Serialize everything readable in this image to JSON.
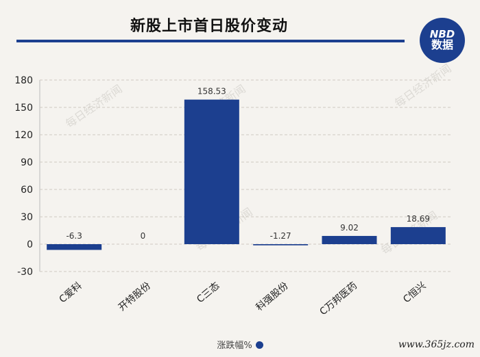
{
  "header": {
    "title": "新股上市首日股价变动",
    "badge_top": "NBD",
    "badge_bottom": "数据"
  },
  "chart_data": {
    "type": "bar",
    "categories": [
      "C爱科",
      "开特股份",
      "C三态",
      "科强股份",
      "C万邦医药",
      "C恒兴"
    ],
    "values": [
      -6.3,
      0,
      158.53,
      -1.27,
      9.02,
      18.69
    ],
    "value_labels": [
      "-6.3",
      "0",
      "158.53",
      "-1.27",
      "9.02",
      "18.69"
    ],
    "ylim": [
      -30,
      180
    ],
    "yticks": [
      -30,
      0,
      30,
      60,
      90,
      120,
      150,
      180
    ],
    "grid": true,
    "bar_color": "#1c3f8f",
    "legend": {
      "label": "涨跌幅%",
      "position": "bottom"
    }
  },
  "watermark": {
    "text": "每日经济新闻",
    "site": "www.365jz.com"
  }
}
